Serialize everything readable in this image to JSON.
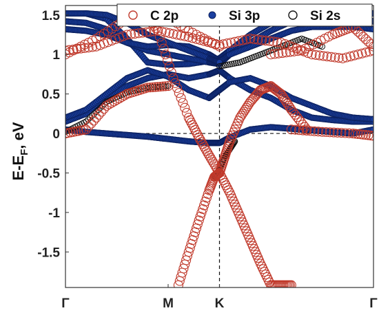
{
  "chart_data": {
    "type": "scatter",
    "title": "",
    "xlabel": "",
    "ylabel": "E-E",
    "ylabel_subscript": "F",
    "ylabel_suffix": ", eV",
    "ylim": [
      -1.95,
      1.62
    ],
    "yticks": [
      1.5,
      1,
      0.5,
      0,
      -0.5,
      -1,
      -1.5
    ],
    "ytick_labels": [
      "1.5",
      "1",
      "0.5",
      "0",
      "-0.5",
      "-1",
      "-1.5"
    ],
    "xlim": [
      0,
      3
    ],
    "xticks": [
      0,
      1,
      1.5,
      3
    ],
    "xtick_labels": [
      "Γ",
      "M",
      "K",
      "Γ"
    ],
    "fermi_level": 0,
    "k_line": 1.5,
    "legend_position": "top-right",
    "legend": [
      "C 2p",
      "Si 3p",
      "Si 2s"
    ],
    "colors": {
      "C 2p": "#c0392b",
      "Si 3p": "#1a3fa0",
      "Si 2s": "#111111"
    },
    "series": [
      {
        "name": "C 2p",
        "marker": "open-circle-large",
        "bands": [
          {
            "x": [
              0,
              0.3,
              0.6,
              0.9,
              1.2,
              1.5,
              1.8,
              2.1,
              2.4,
              2.7,
              3.0
            ],
            "y": [
              1.05,
              1.1,
              1.25,
              1.3,
              1.22,
              1.12,
              1.2,
              1.15,
              1.0,
              0.95,
              1.05
            ]
          },
          {
            "x": [
              0,
              0.3,
              0.6,
              0.9,
              1.2,
              1.5
            ],
            "y": [
              1.0,
              1.2,
              1.45,
              1.55,
              1.3,
              1.1
            ]
          },
          {
            "x": [
              0,
              0.2,
              0.4,
              0.6,
              0.8,
              1.0
            ],
            "y": [
              0.0,
              0.05,
              0.35,
              0.5,
              0.58,
              0.6
            ]
          },
          {
            "x": [
              1.1,
              1.2,
              1.3,
              1.4,
              1.45,
              1.5,
              1.55,
              1.6,
              1.7,
              1.8,
              1.9,
              2.0,
              2.1,
              2.2,
              2.35
            ],
            "y": [
              -1.92,
              -1.5,
              -1.1,
              -0.72,
              -0.55,
              -0.5,
              -0.3,
              -0.1,
              0.2,
              0.4,
              0.55,
              0.6,
              0.5,
              0.3,
              0.05
            ]
          },
          {
            "x": [
              0.75,
              0.9,
              1.05,
              1.2,
              1.3,
              1.4,
              1.5,
              1.6,
              1.7,
              1.8,
              1.9,
              2.0,
              2.1,
              2.2
            ],
            "y": [
              1.55,
              1.3,
              0.7,
              0.2,
              -0.05,
              -0.28,
              -0.5,
              -0.75,
              -1.05,
              -1.35,
              -1.65,
              -1.92,
              -1.92,
              -1.92
            ]
          },
          {
            "x": [
              2.0,
              2.3,
              2.6,
              2.8,
              3.0
            ],
            "y": [
              1.0,
              1.05,
              1.25,
              1.35,
              1.1
            ]
          },
          {
            "x": [
              2.2,
              2.5,
              2.8,
              3.0
            ],
            "y": [
              0.05,
              0.02,
              0.0,
              -0.03
            ]
          }
        ]
      },
      {
        "name": "Si 3p",
        "marker": "filled-circle",
        "bands": [
          {
            "x": [
              0,
              0.2,
              0.4,
              0.6,
              0.8,
              1.0,
              1.2,
              1.4,
              1.5,
              1.6,
              1.8,
              2.0,
              2.2,
              2.4,
              2.6,
              2.8,
              3.0
            ],
            "y": [
              0.05,
              0.02,
              0.0,
              -0.02,
              -0.04,
              -0.07,
              -0.1,
              -0.12,
              -0.12,
              -0.05,
              0.05,
              0.08,
              0.06,
              0.04,
              0.02,
              0.0,
              0.05
            ]
          },
          {
            "x": [
              0,
              0.2,
              0.4,
              0.6,
              0.8,
              1.0,
              1.2,
              1.4,
              1.5,
              1.6,
              1.8,
              2.0,
              2.2,
              2.4,
              2.6,
              2.8,
              3.0
            ],
            "y": [
              0.15,
              0.25,
              0.45,
              0.6,
              0.7,
              0.75,
              0.7,
              0.75,
              0.8,
              0.7,
              0.55,
              0.45,
              0.3,
              0.2,
              0.17,
              0.15,
              0.15
            ]
          },
          {
            "x": [
              0,
              0.2,
              0.4,
              0.6,
              0.8,
              1.0,
              1.2,
              1.4,
              1.5,
              1.6,
              1.8,
              2.0,
              2.2,
              2.4,
              2.6,
              2.8,
              3.0
            ],
            "y": [
              1.52,
              1.52,
              1.45,
              1.2,
              0.9,
              0.87,
              0.88,
              0.92,
              0.95,
              1.05,
              1.25,
              1.4,
              1.5,
              1.52,
              1.53,
              1.53,
              1.52
            ]
          },
          {
            "x": [
              0,
              0.2,
              0.4,
              0.6,
              0.8,
              1.0,
              1.2,
              1.4,
              1.5,
              1.6,
              1.8,
              2.0,
              2.2,
              2.4,
              2.6,
              2.8,
              3.0
            ],
            "y": [
              1.42,
              1.4,
              1.32,
              1.15,
              1.05,
              1.0,
              0.95,
              0.9,
              0.88,
              1.0,
              1.15,
              1.3,
              1.42,
              1.45,
              1.45,
              1.45,
              1.42
            ]
          },
          {
            "x": [
              0,
              0.2,
              0.4,
              0.6,
              0.8,
              1.0,
              1.2,
              1.4,
              1.5,
              1.6,
              1.8,
              2.0,
              2.2,
              2.4,
              2.6,
              2.8,
              3.0
            ],
            "y": [
              1.32,
              1.3,
              1.25,
              1.15,
              1.1,
              1.12,
              1.1,
              1.0,
              0.92,
              1.0,
              1.1,
              1.2,
              1.3,
              1.35,
              1.35,
              1.35,
              1.32
            ]
          },
          {
            "x": [
              0,
              0.2,
              0.4,
              0.6,
              0.8,
              1.0,
              1.2,
              1.4,
              1.5,
              1.6,
              1.8,
              2.0,
              2.2,
              2.4,
              2.6,
              2.8,
              3.0
            ],
            "y": [
              0.2,
              0.3,
              0.5,
              0.7,
              0.8,
              0.72,
              0.55,
              0.45,
              0.55,
              0.65,
              0.7,
              0.6,
              0.45,
              0.35,
              0.25,
              0.2,
              0.18
            ]
          },
          {
            "x": [
              0.2,
              0.4,
              0.6,
              0.8,
              1.0,
              1.2,
              1.4,
              1.5
            ],
            "y": [
              1.52,
              1.5,
              1.4,
              1.25,
              1.15,
              1.05,
              0.95,
              0.9
            ]
          }
        ]
      },
      {
        "name": "Si 2s",
        "marker": "open-circle-small",
        "bands": [
          {
            "x": [
              0,
              0.2,
              0.4,
              0.6,
              0.8,
              1.0
            ],
            "y": [
              0.02,
              0.15,
              0.4,
              0.52,
              0.58,
              0.6
            ]
          },
          {
            "x": [
              1.5,
              1.7,
              1.9,
              2.1,
              2.3,
              2.5
            ],
            "y": [
              0.85,
              0.9,
              1.0,
              1.1,
              1.2,
              1.1
            ]
          },
          {
            "x": [
              1.45,
              1.5,
              1.55,
              1.6,
              1.65
            ],
            "y": [
              -0.55,
              -0.45,
              -0.3,
              -0.2,
              -0.1
            ]
          }
        ]
      }
    ]
  }
}
